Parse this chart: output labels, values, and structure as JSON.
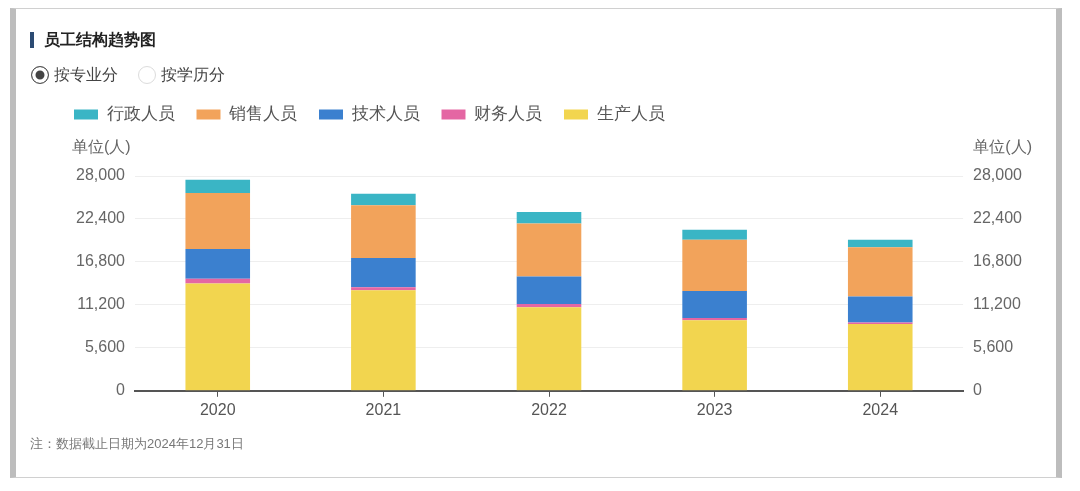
{
  "chart_data": {
    "type": "bar",
    "title": "员工结构趋势图",
    "categories": [
      "2020",
      "2021",
      "2022",
      "2023",
      "2024"
    ],
    "series": [
      {
        "name": "生产人员",
        "color": "#f2d54f",
        "values": [
          14000,
          13100,
          10900,
          9200,
          8700
        ]
      },
      {
        "name": "财务人员",
        "color": "#e466a3",
        "values": [
          600,
          400,
          400,
          300,
          200
        ]
      },
      {
        "name": "技术人员",
        "color": "#3b80cf",
        "values": [
          3900,
          3800,
          3600,
          3500,
          3400
        ]
      },
      {
        "name": "销售人员",
        "color": "#f2a35b",
        "values": [
          7300,
          6900,
          6900,
          6700,
          6400
        ]
      },
      {
        "name": "行政人员",
        "color": "#3ab5c5",
        "values": [
          1700,
          1500,
          1500,
          1300,
          1000
        ]
      }
    ],
    "stacked": true,
    "ylabel": "单位(人)",
    "y2label": "单位(人)",
    "ylim": [
      0,
      28000
    ],
    "yticks": [
      0,
      {
        "value": 5600,
        "label": "5,600"
      },
      {
        "value": 11200,
        "label": "11,200"
      },
      {
        "value": 16800,
        "label": "16,800"
      },
      {
        "value": 22400,
        "label": "22,400"
      },
      {
        "value": 28000,
        "label": "28,000"
      }
    ],
    "y2lim": [
      0,
      28000
    ],
    "y2ticks": [
      0,
      {
        "value": 5600,
        "label": "5,600"
      },
      {
        "value": 11200,
        "label": "11,200"
      },
      {
        "value": 16800,
        "label": "16,800"
      },
      {
        "value": 22400,
        "label": "22,400"
      },
      {
        "value": 28000,
        "label": "28,000"
      }
    ],
    "grid": "y",
    "legend": "top left",
    "annotations": [
      "按专业分",
      "按学历分",
      "注：数据截止日期为2024年12月31日"
    ]
  }
}
